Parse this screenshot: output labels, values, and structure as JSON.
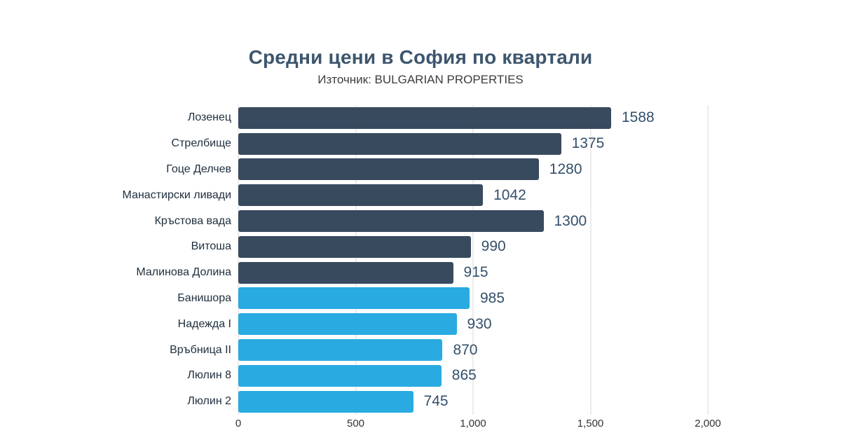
{
  "header": {
    "title": "Средни цени в София по квартали",
    "subtitle": "Източник: BULGARIAN PROPERTIES"
  },
  "chart_data": {
    "type": "bar",
    "orientation": "horizontal",
    "title": "Средни цени в София по квартали",
    "subtitle": "Източник: BULGARIAN PROPERTIES",
    "categories": [
      "Лозенец",
      "Стрелбище",
      "Гоце Делчев",
      "Манастирски ливади",
      "Кръстова вада",
      "Витоша",
      "Малинова Долина",
      "Банишора",
      "Надежда I",
      "Връбница II",
      "Люлин 8",
      "Люлин 2"
    ],
    "values": [
      1588,
      1375,
      1280,
      1042,
      1300,
      990,
      915,
      985,
      930,
      870,
      865,
      745
    ],
    "bar_groups": [
      "dark",
      "dark",
      "dark",
      "dark",
      "dark",
      "dark",
      "dark",
      "light",
      "light",
      "light",
      "light",
      "light"
    ],
    "group_colors": {
      "dark": "#384a5e",
      "light": "#29abe2"
    },
    "xlim": [
      0,
      2000
    ],
    "x_ticks": [
      0,
      500,
      1000,
      1500,
      2000
    ],
    "x_tick_labels": [
      "0",
      "500",
      "1,000",
      "1,500",
      "2,000"
    ],
    "grid": true,
    "gridline_color": "#d9d9d9",
    "value_label_color": "#33506b",
    "background": "#ffffff"
  }
}
